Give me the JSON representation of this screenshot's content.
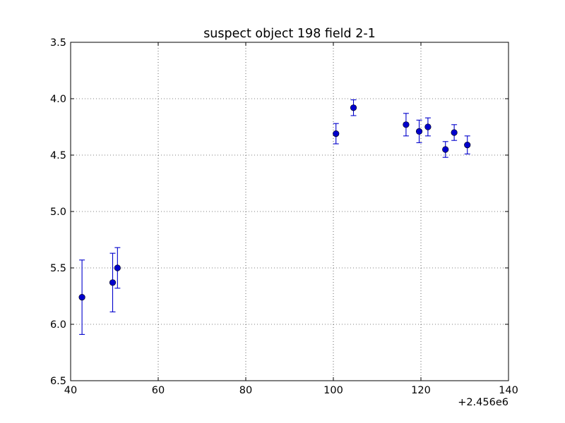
{
  "chart_data": {
    "type": "scatter",
    "title": "suspect object 198 field 2-1",
    "xlabel": "",
    "ylabel": "",
    "x_offset_label": "+2.456e6",
    "xlim": [
      40,
      140
    ],
    "ylim": [
      6.5,
      3.5
    ],
    "y_inverted": true,
    "grid": true,
    "x_ticks": [
      "40",
      "60",
      "80",
      "100",
      "120",
      "140"
    ],
    "y_ticks": [
      "3.5",
      "4.0",
      "4.5",
      "5.0",
      "5.5",
      "6.0",
      "6.5"
    ],
    "marker_color": "#0000cc",
    "series": [
      {
        "x": [
          42.6,
          49.6,
          50.7,
          100.6,
          104.6,
          116.6,
          119.6,
          121.6,
          125.6,
          127.6,
          130.6
        ],
        "y": [
          5.76,
          5.63,
          5.5,
          4.31,
          4.08,
          4.23,
          4.29,
          4.25,
          4.45,
          4.3,
          4.41
        ],
        "yerr": [
          0.33,
          0.26,
          0.18,
          0.09,
          0.07,
          0.1,
          0.1,
          0.08,
          0.07,
          0.07,
          0.08
        ]
      }
    ]
  }
}
